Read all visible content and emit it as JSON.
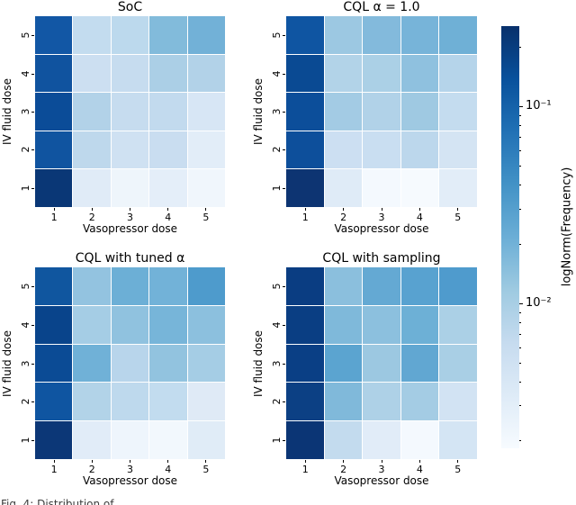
{
  "figure": {
    "background": "#ffffff",
    "caption_clipped": "Fig. 4: Distribution of …"
  },
  "colorbar": {
    "label": "logNorm(Frequency)",
    "orientation": "vertical",
    "colormap": "Blues (dark #08306b at top, light #f7fbff at bottom)",
    "major_ticks": [
      {
        "label": "10⁻¹",
        "offset": 89
      },
      {
        "label": "10⁻²",
        "offset": 308
      }
    ],
    "minor_tick_offsets": [
      23,
      99,
      110,
      123,
      138,
      155,
      176,
      203,
      242,
      318,
      329,
      342,
      357,
      374,
      395,
      421,
      460
    ]
  },
  "value_note": "cell frequencies are estimated from the logNorm Blues colorbar; rows ordered top-to-bottom as IV fluid dose 5,4,3,2,1; columns left-to-right as vasopressor dose 1..5",
  "chart_data": [
    {
      "type": "heatmap",
      "title": "SoC",
      "xlabel": "Vasopressor dose",
      "ylabel": "IV fluid dose",
      "xticks": [
        "1",
        "2",
        "3",
        "4",
        "5"
      ],
      "yticks": [
        "5",
        "4",
        "3",
        "2",
        "1"
      ],
      "colors": [
        [
          "#1257a5",
          "#c3dcef",
          "#bcd9ed",
          "#82bbdb",
          "#72b1d7"
        ],
        [
          "#10539f",
          "#ccdff1",
          "#c6dcef",
          "#abcfe6",
          "#b2d2e8"
        ],
        [
          "#0b4c98",
          "#b2d2e8",
          "#c6dcef",
          "#c2daee",
          "#d7e6f5"
        ],
        [
          "#1054a0",
          "#bed8ec",
          "#cfe1f2",
          "#c9ddf0",
          "#e2edf8"
        ],
        [
          "#0a3776",
          "#e0ebf7",
          "#eef5fb",
          "#e4eef9",
          "#f0f6fc"
        ]
      ],
      "approx_values": [
        [
          0.11,
          0.0065,
          0.0075,
          0.019,
          0.023
        ],
        [
          0.12,
          0.0055,
          0.006,
          0.01,
          0.009
        ],
        [
          0.13,
          0.009,
          0.006,
          0.0065,
          0.0045
        ],
        [
          0.12,
          0.0075,
          0.005,
          0.0055,
          0.004
        ],
        [
          0.2,
          0.004,
          0.0025,
          0.0035,
          0.0025
        ]
      ]
    },
    {
      "type": "heatmap",
      "title": "CQL α = 1.0",
      "xlabel": "Vasopressor dose",
      "ylabel": "IV fluid dose",
      "xticks": [
        "1",
        "2",
        "3",
        "4",
        "5"
      ],
      "yticks": [
        "5",
        "4",
        "3",
        "2",
        "1"
      ],
      "colors": [
        [
          "#0f55a2",
          "#9cc8e2",
          "#83badc",
          "#77b4d9",
          "#6fb0d6"
        ],
        [
          "#0a4a93",
          "#b2d3e8",
          "#abd0e6",
          "#8fc1df",
          "#b5d4ea"
        ],
        [
          "#0c4e9a",
          "#a3cbe4",
          "#b1d2e8",
          "#9fc9e2",
          "#c4dcef"
        ],
        [
          "#0d4f9b",
          "#ccdff2",
          "#c9def1",
          "#bcd7ec",
          "#d4e4f3"
        ],
        [
          "#0d3472",
          "#dfebf7",
          "#f4f9fe",
          "#f6fafe",
          "#e2edf8"
        ]
      ],
      "approx_values": [
        [
          0.12,
          0.013,
          0.019,
          0.023,
          0.024
        ],
        [
          0.14,
          0.009,
          0.01,
          0.016,
          0.0085
        ],
        [
          0.13,
          0.011,
          0.009,
          0.012,
          0.0065
        ],
        [
          0.13,
          0.0055,
          0.0055,
          0.0075,
          0.005
        ],
        [
          0.2,
          0.004,
          0.002,
          0.002,
          0.004
        ]
      ]
    },
    {
      "type": "heatmap",
      "title": "CQL with tuned α",
      "xlabel": "Vasopressor dose",
      "ylabel": "IV fluid dose",
      "xticks": [
        "1",
        "2",
        "3",
        "4",
        "5"
      ],
      "yticks": [
        "5",
        "4",
        "3",
        "2",
        "1"
      ],
      "colors": [
        [
          "#10569f",
          "#93c3e0",
          "#6cafd6",
          "#72b2d8",
          "#4e9bcc"
        ],
        [
          "#09448b",
          "#a5cde5",
          "#90c2df",
          "#77b5d9",
          "#8cc0de"
        ],
        [
          "#0b4b95",
          "#70b1d7",
          "#b8d5eb",
          "#92c3df",
          "#a5cde5"
        ],
        [
          "#0f55a1",
          "#b2d3e8",
          "#bed9ed",
          "#c2dcef",
          "#dfeaf6"
        ],
        [
          "#0c3777",
          "#e1ecf8",
          "#eef5fc",
          "#f2f8fd",
          "#e0ecf7"
        ]
      ],
      "approx_values": [
        [
          0.12,
          0.015,
          0.024,
          0.023,
          0.035
        ],
        [
          0.155,
          0.011,
          0.016,
          0.023,
          0.017
        ],
        [
          0.14,
          0.024,
          0.008,
          0.015,
          0.011
        ],
        [
          0.12,
          0.009,
          0.0075,
          0.0065,
          0.004
        ],
        [
          0.2,
          0.004,
          0.0025,
          0.0025,
          0.004
        ]
      ]
    },
    {
      "type": "heatmap",
      "title": "CQL with sampling",
      "xlabel": "Vasopressor dose",
      "ylabel": "IV fluid dose",
      "xticks": [
        "1",
        "2",
        "3",
        "4",
        "5"
      ],
      "yticks": [
        "5",
        "4",
        "3",
        "2",
        "1"
      ],
      "colors": [
        [
          "#0a3d82",
          "#8bbfdd",
          "#64a9d3",
          "#58a2d0",
          "#4f9bcd"
        ],
        [
          "#0a3e83",
          "#7fb9da",
          "#8cc0de",
          "#6db0d6",
          "#abd0e6"
        ],
        [
          "#0a3f85",
          "#5ba4d0",
          "#9cc8e1",
          "#61a7d2",
          "#a9cfe5"
        ],
        [
          "#0c4084",
          "#80b9da",
          "#aed1e7",
          "#a4cce4",
          "#d2e3f3"
        ],
        [
          "#0b3575",
          "#c3dbee",
          "#e1ecf8",
          "#f4f9fe",
          "#d4e5f4"
        ]
      ],
      "approx_values": [
        [
          0.17,
          0.017,
          0.028,
          0.031,
          0.035
        ],
        [
          0.17,
          0.02,
          0.017,
          0.024,
          0.01
        ],
        [
          0.17,
          0.031,
          0.013,
          0.028,
          0.011
        ],
        [
          0.17,
          0.02,
          0.0095,
          0.011,
          0.005
        ],
        [
          0.2,
          0.0065,
          0.004,
          0.002,
          0.005
        ]
      ]
    }
  ]
}
